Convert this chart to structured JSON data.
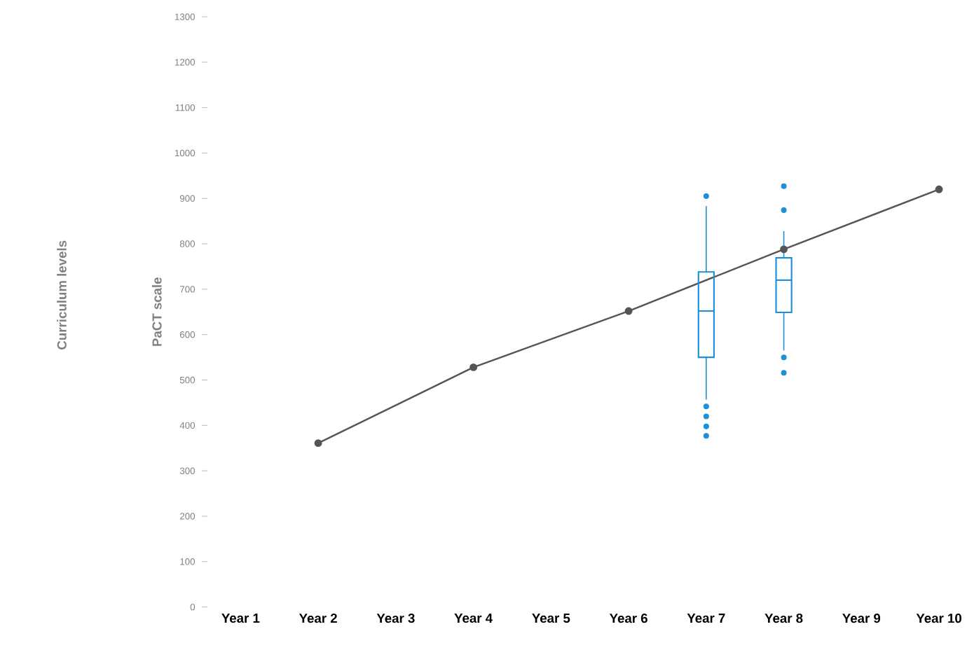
{
  "chart_data": {
    "type": "line",
    "ylabel": "PaCT scale",
    "annotations": [
      "Curriculum levels"
    ],
    "categories": [
      "Year 1",
      "Year 2",
      "Year 3",
      "Year 4",
      "Year 5",
      "Year 6",
      "Year 7",
      "Year 8",
      "Year 9",
      "Year 10"
    ],
    "series": [
      {
        "color": "#555555",
        "marker": "circle",
        "values": [
          null,
          361,
          null,
          528,
          null,
          652,
          null,
          788,
          null,
          920
        ]
      },
      {
        "type": "box",
        "color": "#1f8fd6",
        "boxes": [
          null,
          null,
          null,
          null,
          null,
          null,
          {
            "low": 457,
            "q1": 550,
            "median": 652,
            "q3": 738,
            "high": 883,
            "outliers": [
              905,
              442,
              420,
              398,
              377
            ]
          },
          {
            "low": 565,
            "q1": 649,
            "median": 720,
            "q3": 769,
            "high": 828,
            "outliers": [
              927,
              874,
              550,
              516
            ]
          },
          null,
          null
        ]
      }
    ],
    "ylim": [
      0,
      1300
    ],
    "yticks": [
      0,
      100,
      200,
      300,
      400,
      500,
      600,
      700,
      800,
      900,
      1000,
      1100,
      1200,
      1300
    ],
    "grid": false
  }
}
